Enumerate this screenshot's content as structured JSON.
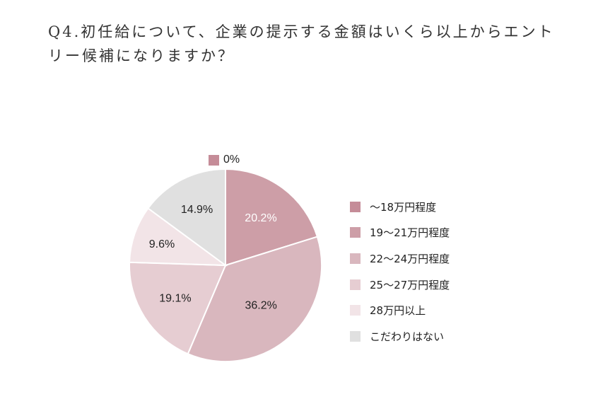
{
  "title": "Q4.初任給について、企業の提示する金額はいくら以上からエントリー候補になりますか？",
  "colors": {
    "s0": "#c58c98",
    "s1": "#cd9ea7",
    "s2": "#d9b7be",
    "s3": "#e6cdd2",
    "s4": "#f2e4e7",
    "s5": "#e0e0e0"
  },
  "chart_data": {
    "type": "pie",
    "title": "Q4.初任給について、企業の提示する金額はいくら以上からエントリー候補になりますか？",
    "categories": [
      "〜18万円程度",
      "19〜21万円程度",
      "22〜24万円程度",
      "25〜27万円程度",
      "28万円以上",
      "こだわりはない"
    ],
    "values": [
      0,
      20.2,
      36.2,
      19.1,
      9.6,
      14.9
    ],
    "unit": "%",
    "data_labels": [
      "0%",
      "20.2%",
      "36.2%",
      "19.1%",
      "9.6%",
      "14.9%"
    ],
    "start_angle": "12 o'clock",
    "direction": "clockwise",
    "legend_position": "right"
  },
  "legend": [
    {
      "label": "〜18万円程度",
      "color": "#c58c98"
    },
    {
      "label": "19〜21万円程度",
      "color": "#cd9ea7"
    },
    {
      "label": "22〜24万円程度",
      "color": "#d9b7be"
    },
    {
      "label": "25〜27万円程度",
      "color": "#e6cdd2"
    },
    {
      "label": "28万円以上",
      "color": "#f2e4e7"
    },
    {
      "label": "こだわりはない",
      "color": "#e0e0e0"
    }
  ],
  "zero_label": "0%"
}
